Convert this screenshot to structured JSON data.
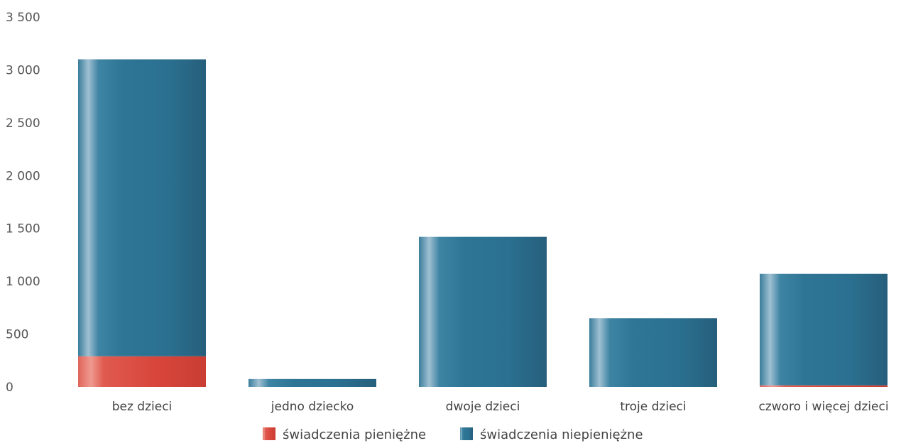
{
  "chart_data": {
    "type": "bar",
    "stacked": true,
    "categories": [
      "bez dzieci",
      "jedno dziecko",
      "dwoje dzieci",
      "troje dzieci",
      "czworo i więcej dzieci"
    ],
    "series": [
      {
        "name": "świadczenia pieniężne",
        "color": "#d9463c",
        "values": [
          290,
          0,
          0,
          0,
          15
        ]
      },
      {
        "name": "świadczenia niepieniężne",
        "color": "#2f7898",
        "values": [
          2810,
          75,
          1420,
          650,
          1055
        ]
      }
    ],
    "ylim": [
      0,
      3500
    ],
    "yticks": [
      0,
      500,
      1000,
      1500,
      2000,
      2500,
      3000,
      3500
    ],
    "ytick_labels": [
      "0",
      "500",
      "1 000",
      "1 500",
      "2 000",
      "2 500",
      "3 000",
      "3 500"
    ],
    "grid": false,
    "legend_position": "bottom-center"
  }
}
